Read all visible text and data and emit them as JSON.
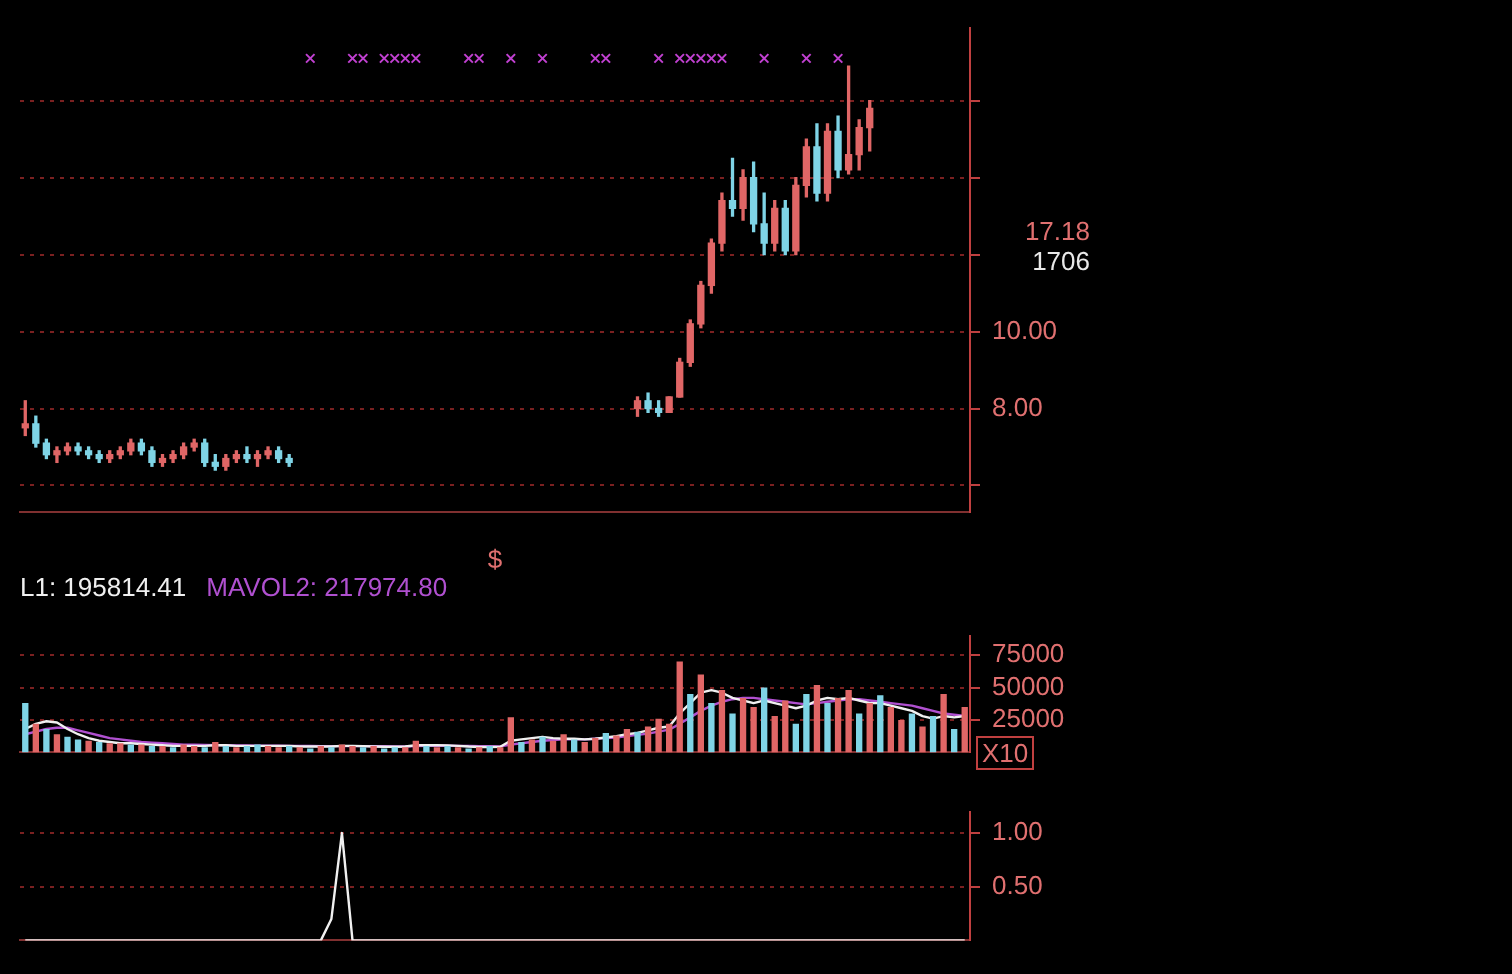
{
  "chart_data": [
    {
      "type": "candlestick",
      "categories": [
        null,
        null,
        null,
        null,
        null,
        null,
        null,
        null,
        null,
        null,
        null,
        null,
        null,
        null,
        null,
        null,
        null,
        null,
        null,
        null,
        null,
        null,
        null,
        null,
        null,
        null,
        null,
        null,
        null,
        null,
        null,
        null,
        null,
        null,
        null,
        null,
        null,
        null,
        null,
        null,
        null,
        null,
        null,
        null,
        null,
        null,
        null,
        null,
        null,
        null,
        null,
        null,
        null,
        null,
        null,
        null,
        null,
        null,
        null,
        null,
        null,
        null,
        null,
        null,
        null,
        null,
        null,
        null,
        null,
        null,
        null,
        null,
        null,
        null,
        null,
        null,
        null,
        null,
        null,
        null,
        null,
        null,
        null,
        null,
        null,
        null,
        null,
        null,
        null,
        null
      ],
      "ohlc": [
        [
          7.5,
          8.2,
          7.3,
          7.6
        ],
        [
          7.6,
          7.8,
          7.0,
          7.1
        ],
        [
          7.1,
          7.2,
          6.7,
          6.8
        ],
        [
          6.8,
          7.0,
          6.6,
          6.9
        ],
        [
          6.9,
          7.1,
          6.8,
          7.0
        ],
        [
          7.0,
          7.1,
          6.8,
          6.9
        ],
        [
          6.9,
          7.0,
          6.7,
          6.8
        ],
        [
          6.8,
          6.9,
          6.6,
          6.7
        ],
        [
          6.7,
          6.9,
          6.6,
          6.8
        ],
        [
          6.8,
          7.0,
          6.7,
          6.9
        ],
        [
          6.9,
          7.2,
          6.8,
          7.1
        ],
        [
          7.1,
          7.2,
          6.8,
          6.9
        ],
        [
          6.9,
          7.0,
          6.5,
          6.6
        ],
        [
          6.6,
          6.8,
          6.5,
          6.7
        ],
        [
          6.7,
          6.9,
          6.6,
          6.8
        ],
        [
          6.8,
          7.1,
          6.7,
          7.0
        ],
        [
          7.0,
          7.2,
          6.9,
          7.1
        ],
        [
          7.1,
          7.2,
          6.5,
          6.6
        ],
        [
          6.6,
          6.8,
          6.4,
          6.5
        ],
        [
          6.5,
          6.8,
          6.4,
          6.7
        ],
        [
          6.7,
          6.9,
          6.6,
          6.8
        ],
        [
          6.8,
          7.0,
          6.6,
          6.7
        ],
        [
          6.7,
          6.9,
          6.5,
          6.8
        ],
        [
          6.8,
          7.0,
          6.7,
          6.9
        ],
        [
          6.9,
          7.0,
          6.6,
          6.7
        ],
        [
          6.7,
          6.8,
          6.5,
          6.6
        ],
        null,
        null,
        null,
        null,
        null,
        null,
        null,
        null,
        null,
        null,
        null,
        null,
        null,
        null,
        null,
        null,
        null,
        null,
        null,
        null,
        null,
        null,
        null,
        null,
        null,
        null,
        null,
        null,
        null,
        null,
        null,
        null,
        [
          8.0,
          8.3,
          7.8,
          8.2
        ],
        [
          8.2,
          8.4,
          7.9,
          8.0
        ],
        [
          8.0,
          8.2,
          7.8,
          7.9
        ],
        [
          7.9,
          8.3,
          7.9,
          8.3
        ],
        [
          8.3,
          9.3,
          8.3,
          9.2
        ],
        [
          9.2,
          10.3,
          9.1,
          10.2
        ],
        [
          10.2,
          11.3,
          10.1,
          11.2
        ],
        [
          11.2,
          12.4,
          11.0,
          12.3
        ],
        [
          12.3,
          13.6,
          12.1,
          13.4
        ],
        [
          13.4,
          14.5,
          13.0,
          13.2
        ],
        [
          13.2,
          14.2,
          12.9,
          14.0
        ],
        [
          14.0,
          14.4,
          12.6,
          12.8
        ],
        [
          12.8,
          13.6,
          12.0,
          12.3
        ],
        [
          12.3,
          13.4,
          12.1,
          13.2
        ],
        [
          13.2,
          13.4,
          12.0,
          12.1
        ],
        [
          12.1,
          14.0,
          12.0,
          13.8
        ],
        [
          13.8,
          15.0,
          13.5,
          14.8
        ],
        [
          14.8,
          15.4,
          13.4,
          13.6
        ],
        [
          13.6,
          15.4,
          13.4,
          15.2
        ],
        [
          15.2,
          15.6,
          14.0,
          14.2
        ],
        [
          14.2,
          16.9,
          14.1,
          14.6
        ],
        [
          14.6,
          15.5,
          14.2,
          15.3
        ],
        [
          15.3,
          16.0,
          14.7,
          15.8
        ],
        null,
        null,
        null,
        null,
        null,
        null,
        null,
        null,
        null
      ],
      "colors": [
        "#e06666",
        "#7fd4e6",
        "#7fd4e6",
        "#e06666",
        "#e06666",
        "#7fd4e6",
        "#7fd4e6",
        "#7fd4e6",
        "#e06666",
        "#e06666",
        "#e06666",
        "#7fd4e6",
        "#7fd4e6",
        "#e06666",
        "#e06666",
        "#e06666",
        "#e06666",
        "#7fd4e6",
        "#7fd4e6",
        "#e06666",
        "#e06666",
        "#7fd4e6",
        "#e06666",
        "#e06666",
        "#7fd4e6",
        "#7fd4e6",
        null,
        null,
        null,
        null,
        null,
        null,
        null,
        null,
        null,
        null,
        null,
        null,
        null,
        null,
        null,
        null,
        null,
        null,
        null,
        null,
        null,
        null,
        null,
        null,
        null,
        null,
        null,
        null,
        null,
        null,
        null,
        null,
        "#e06666",
        "#7fd4e6",
        "#7fd4e6",
        "#e06666",
        "#e06666",
        "#e06666",
        "#e06666",
        "#e06666",
        "#e06666",
        "#7fd4e6",
        "#e06666",
        "#7fd4e6",
        "#7fd4e6",
        "#e06666",
        "#7fd4e6",
        "#e06666",
        "#e06666",
        "#7fd4e6",
        "#e06666",
        "#7fd4e6",
        "#e06666",
        "#e06666",
        "#e06666",
        null,
        null,
        null,
        null,
        null,
        null,
        null,
        null,
        null
      ],
      "series": [
        {
          "type": "scatter",
          "color": "#c040d0",
          "marker": "cross",
          "values": [
            null,
            null,
            null,
            null,
            null,
            null,
            null,
            null,
            null,
            null,
            null,
            null,
            null,
            null,
            null,
            null,
            null,
            null,
            null,
            null,
            null,
            null,
            null,
            null,
            null,
            null,
            null,
            17.1,
            null,
            null,
            null,
            17.1,
            17.1,
            null,
            17.1,
            17.1,
            17.1,
            17.1,
            null,
            null,
            null,
            null,
            17.1,
            17.1,
            null,
            null,
            17.1,
            null,
            null,
            17.1,
            null,
            null,
            null,
            null,
            17.1,
            17.1,
            null,
            null,
            null,
            null,
            17.1,
            null,
            17.1,
            17.1,
            17.1,
            17.1,
            17.1,
            null,
            null,
            null,
            17.1,
            null,
            null,
            null,
            17.1,
            null,
            null,
            17.1,
            null,
            null,
            null,
            null,
            null,
            null,
            null,
            null,
            null,
            null,
            null,
            null
          ]
        }
      ],
      "ylim": [
        5.3,
        17.9
      ],
      "yticks": [
        {
          "value": 6,
          "label": null
        },
        {
          "value": 8,
          "label": "8.00"
        },
        {
          "value": 10,
          "label": "10.00"
        },
        {
          "value": 12,
          "label": null
        },
        {
          "value": 14,
          "label": null
        },
        {
          "value": 16,
          "label": null
        }
      ],
      "grid": "y",
      "annotations": [
        "17.18",
        "1706"
      ]
    },
    {
      "type": "bar",
      "categories": [
        null,
        null,
        null,
        null,
        null,
        null,
        null,
        null,
        null,
        null,
        null,
        null,
        null,
        null,
        null,
        null,
        null,
        null,
        null,
        null,
        null,
        null,
        null,
        null,
        null,
        null,
        null,
        null,
        null,
        null,
        null,
        null,
        null,
        null,
        null,
        null,
        null,
        null,
        null,
        null,
        null,
        null,
        null,
        null,
        null,
        null,
        null,
        null,
        null,
        null,
        null,
        null,
        null,
        null,
        null,
        null,
        null,
        null,
        null,
        null,
        null,
        null,
        null,
        null,
        null,
        null,
        null,
        null,
        null,
        null,
        null,
        null,
        null,
        null,
        null,
        null,
        null,
        null,
        null,
        null,
        null,
        null,
        null,
        null,
        null,
        null,
        null,
        null,
        null,
        null
      ],
      "series": [
        {
          "type": "bar",
          "colors": [
            "#7fd4e6",
            "#e06666",
            "#7fd4e6",
            "#e06666",
            "#7fd4e6",
            "#7fd4e6",
            "#e06666",
            "#7fd4e6",
            "#e06666",
            "#e06666",
            "#7fd4e6",
            "#e06666",
            "#7fd4e6",
            "#e06666",
            "#7fd4e6",
            "#e06666",
            "#e06666",
            "#7fd4e6",
            "#e06666",
            "#7fd4e6",
            "#e06666",
            "#7fd4e6",
            "#7fd4e6",
            "#e06666",
            "#e06666",
            "#7fd4e6",
            "#e06666",
            "#7fd4e6",
            "#e06666",
            "#7fd4e6",
            "#e06666",
            "#e06666",
            "#7fd4e6",
            "#e06666",
            "#7fd4e6",
            "#7fd4e6",
            "#e06666",
            "#e06666",
            "#7fd4e6",
            "#e06666",
            "#7fd4e6",
            "#e06666",
            "#7fd4e6",
            "#e06666",
            "#7fd4e6",
            "#e06666",
            "#e06666",
            "#7fd4e6",
            "#e06666",
            "#7fd4e6",
            "#e06666",
            "#e06666",
            "#7fd4e6",
            "#e06666",
            "#e06666",
            "#7fd4e6",
            "#e06666",
            "#e06666",
            "#7fd4e6",
            "#e06666",
            "#e06666",
            "#e06666",
            "#e06666",
            "#7fd4e6",
            "#e06666",
            "#7fd4e6",
            "#e06666",
            "#7fd4e6",
            "#e06666",
            "#e06666",
            "#7fd4e6",
            "#e06666",
            "#e06666",
            "#7fd4e6",
            "#7fd4e6",
            "#e06666",
            "#7fd4e6",
            "#e06666",
            "#e06666",
            "#7fd4e6",
            "#e06666",
            "#7fd4e6",
            "#e06666",
            "#e06666",
            "#7fd4e6",
            "#e06666",
            "#7fd4e6",
            "#e06666",
            "#7fd4e6",
            "#e06666"
          ],
          "values": [
            38000,
            22000,
            18000,
            14000,
            12000,
            10000,
            9000,
            8000,
            7000,
            7000,
            6000,
            6000,
            5000,
            5000,
            4000,
            6000,
            5000,
            4000,
            8000,
            5000,
            4000,
            5000,
            6000,
            5000,
            4000,
            5000,
            4000,
            3000,
            5000,
            4000,
            6000,
            5000,
            4000,
            5000,
            3000,
            4000,
            4000,
            9000,
            5000,
            4000,
            5000,
            4000,
            3000,
            4000,
            5000,
            4000,
            27000,
            8000,
            10000,
            12000,
            9000,
            14000,
            10000,
            8000,
            11000,
            15000,
            13000,
            18000,
            16000,
            20000,
            26000,
            22000,
            70000,
            45000,
            60000,
            38000,
            48000,
            30000,
            42000,
            35000,
            50000,
            28000,
            40000,
            22000,
            45000,
            52000,
            38000,
            42000,
            48000,
            30000,
            38000,
            44000,
            35000,
            25000,
            30000,
            20000,
            28000,
            45000,
            18000,
            35000
          ]
        },
        {
          "type": "line",
          "color": "#f0f0f0",
          "values": [
            18000,
            22000,
            24000,
            23000,
            18000,
            14000,
            11000,
            9000,
            8000,
            7000,
            7000,
            6500,
            6000,
            5500,
            5000,
            5000,
            5000,
            5000,
            5500,
            5500,
            5000,
            5000,
            5000,
            5000,
            5000,
            5000,
            4500,
            4500,
            4500,
            4500,
            5000,
            5000,
            4800,
            4600,
            4400,
            4300,
            4500,
            5500,
            5500,
            5600,
            5400,
            5000,
            4500,
            4200,
            4200,
            4300,
            9000,
            10000,
            11000,
            12000,
            11000,
            10500,
            10500,
            10000,
            10500,
            11500,
            12500,
            14000,
            15000,
            17000,
            19000,
            20000,
            30000,
            38000,
            46000,
            48000,
            46000,
            42000,
            40000,
            38000,
            40000,
            38000,
            36000,
            34000,
            36000,
            40000,
            42000,
            41000,
            42000,
            40000,
            38000,
            38000,
            36000,
            34000,
            32000,
            28000,
            26000,
            28000,
            27000,
            28000
          ]
        },
        {
          "type": "line",
          "color": "#b050d0",
          "values": [
            14000,
            16000,
            18000,
            19000,
            19000,
            17000,
            15000,
            13000,
            11000,
            10000,
            9000,
            8000,
            7500,
            7000,
            6500,
            6000,
            6000,
            5800,
            5600,
            5500,
            5400,
            5300,
            5200,
            5200,
            5100,
            5000,
            5000,
            4900,
            4800,
            4800,
            4800,
            4800,
            4800,
            4800,
            4700,
            4600,
            4600,
            4800,
            5000,
            5100,
            5100,
            5000,
            4900,
            4800,
            4700,
            4600,
            6000,
            7000,
            8000,
            9000,
            9500,
            10000,
            10000,
            10000,
            10500,
            11000,
            11500,
            12500,
            13500,
            14500,
            16000,
            17500,
            22000,
            27000,
            32000,
            36000,
            39000,
            41000,
            42000,
            42000,
            41000,
            40000,
            39000,
            38000,
            37000,
            38000,
            39000,
            40000,
            41000,
            41000,
            40000,
            39000,
            38000,
            37000,
            36000,
            34000,
            32000,
            30000,
            29000,
            28000
          ]
        }
      ],
      "ylim": [
        0,
        90000
      ],
      "yticks": [
        25000,
        50000,
        75000
      ],
      "grid": "y",
      "annotations": [
        "$",
        "L1: 195814.41",
        "MAVOL2: 217974.80",
        "X10"
      ]
    },
    {
      "type": "line",
      "categories": [
        null,
        null,
        null,
        null,
        null,
        null,
        null,
        null,
        null,
        null,
        null,
        null,
        null,
        null,
        null,
        null,
        null,
        null,
        null,
        null,
        null,
        null,
        null,
        null,
        null,
        null,
        null,
        null,
        null,
        null,
        null,
        null,
        null,
        null,
        null,
        null,
        null,
        null,
        null,
        null,
        null,
        null,
        null,
        null,
        null,
        null,
        null,
        null,
        null,
        null,
        null,
        null,
        null,
        null,
        null,
        null,
        null,
        null,
        null,
        null,
        null,
        null,
        null,
        null,
        null,
        null,
        null,
        null,
        null,
        null,
        null,
        null,
        null,
        null,
        null,
        null,
        null,
        null,
        null,
        null,
        null,
        null,
        null,
        null,
        null,
        null,
        null,
        null,
        null,
        null
      ],
      "series": [
        {
          "type": "line",
          "color": "#f0f0f0",
          "values": [
            0,
            0,
            0,
            0,
            0,
            0,
            0,
            0,
            0,
            0,
            0,
            0,
            0,
            0,
            0,
            0,
            0,
            0,
            0,
            0,
            0,
            0,
            0,
            0,
            0,
            0,
            0,
            0,
            0,
            0.2,
            1,
            0,
            0,
            0,
            0,
            0,
            0,
            0,
            0,
            0,
            0,
            0,
            0,
            0,
            0,
            0,
            0,
            0,
            0,
            0,
            0,
            0,
            0,
            0,
            0,
            0,
            0,
            0,
            0,
            0,
            0,
            0,
            0,
            0,
            0,
            0,
            0,
            0,
            0,
            0,
            0,
            0,
            0,
            0,
            0,
            0,
            0,
            0,
            0,
            0,
            0,
            0,
            0,
            0,
            0,
            0,
            0,
            0,
            0,
            0
          ]
        }
      ],
      "ylim": [
        0,
        1.2
      ],
      "yticks": [
        {
          "value": 0.5,
          "label": "0.50"
        },
        {
          "value": 1,
          "label": "1.00"
        }
      ],
      "grid": "y"
    }
  ]
}
